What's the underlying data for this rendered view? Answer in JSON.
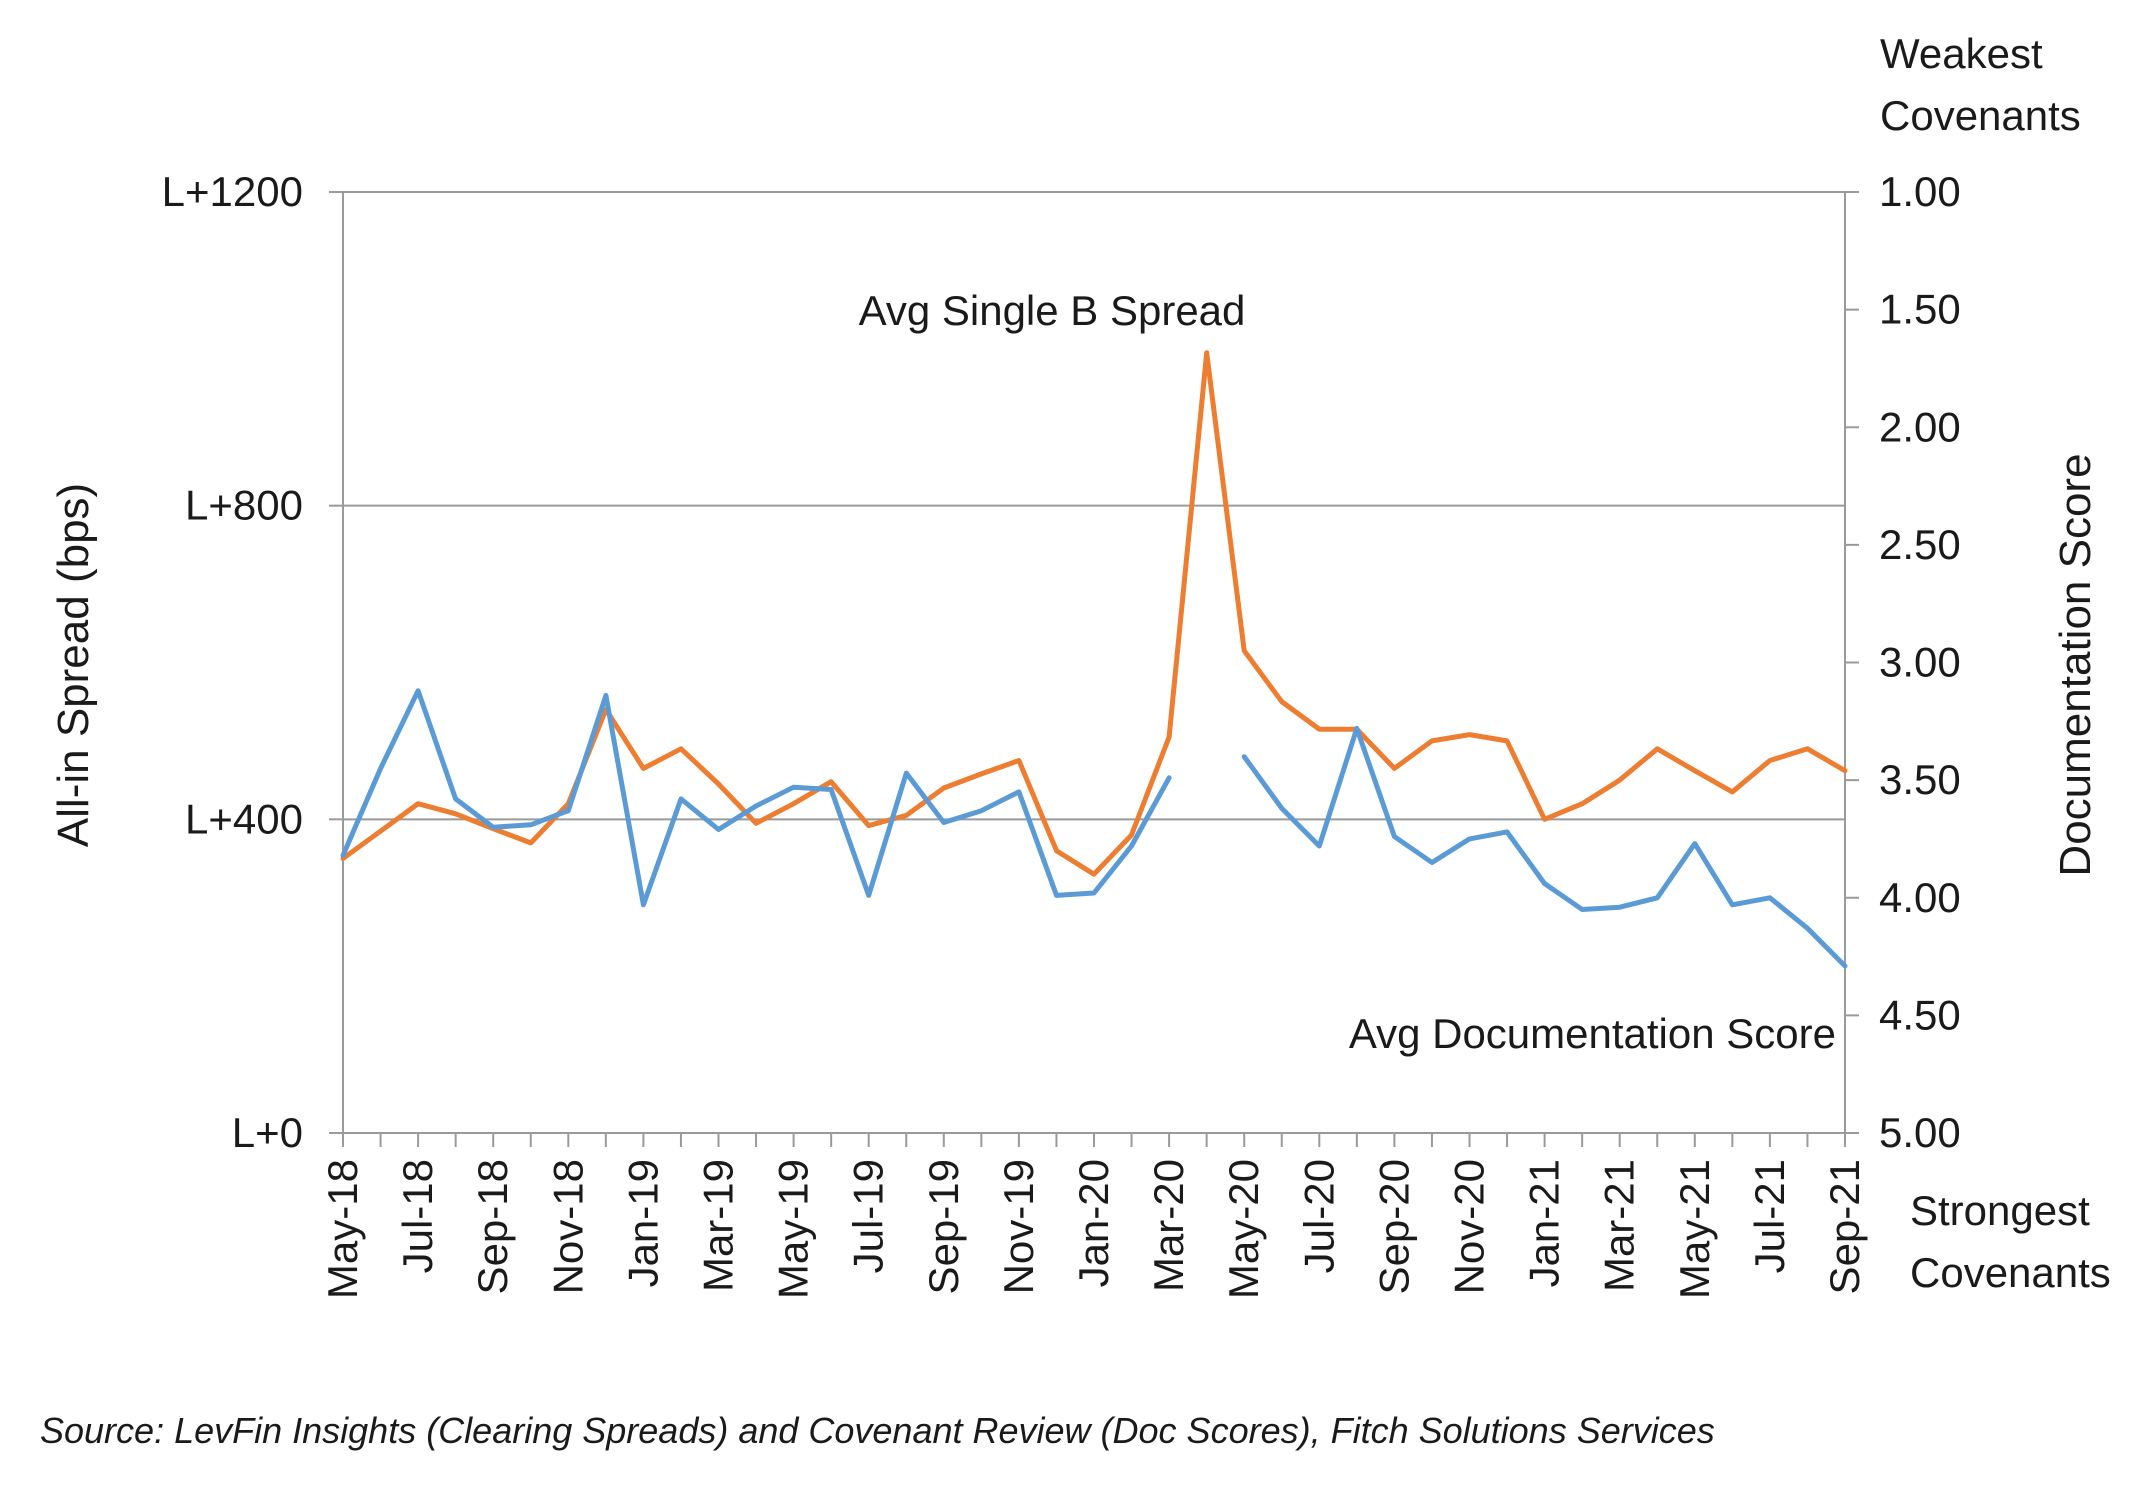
{
  "chart_data": {
    "type": "line",
    "x": [
      "May-18",
      "Jun-18",
      "Jul-18",
      "Aug-18",
      "Sep-18",
      "Oct-18",
      "Nov-18",
      "Dec-18",
      "Jan-19",
      "Feb-19",
      "Mar-19",
      "Apr-19",
      "May-19",
      "Jun-19",
      "Jul-19",
      "Aug-19",
      "Sep-19",
      "Oct-19",
      "Nov-19",
      "Dec-19",
      "Jan-20",
      "Feb-20",
      "Mar-20",
      "Apr-20",
      "May-20",
      "Jun-20",
      "Jul-20",
      "Aug-20",
      "Sep-20",
      "Oct-20",
      "Nov-20",
      "Dec-20",
      "Jan-21",
      "Feb-21",
      "Mar-21",
      "Apr-21",
      "May-21",
      "Jun-21",
      "Jul-21",
      "Aug-21",
      "Sep-21"
    ],
    "x_tick_labels": [
      "May-18",
      "Jul-18",
      "Sep-18",
      "Nov-18",
      "Jan-19",
      "Mar-19",
      "May-19",
      "Jul-19",
      "Sep-19",
      "Nov-19",
      "Jan-20",
      "Mar-20",
      "May-20",
      "Jul-20",
      "Sep-20",
      "Nov-20",
      "Jan-21",
      "Mar-21",
      "May-21",
      "Jul-21",
      "Sep-21"
    ],
    "left_axis": {
      "label": "All-in Spread (bps)",
      "range": [
        0,
        1200
      ],
      "ticks": [
        0,
        400,
        800,
        1200
      ],
      "tick_labels": [
        "L+0",
        "L+400",
        "L+800",
        "L+1200"
      ]
    },
    "right_axis": {
      "label": "Documentation Score",
      "range": [
        1.0,
        5.0
      ],
      "inverted": true,
      "ticks": [
        1.0,
        1.5,
        2.0,
        2.5,
        3.0,
        3.5,
        4.0,
        4.5,
        5.0
      ],
      "tick_labels": [
        "1.00",
        "1.50",
        "2.00",
        "2.50",
        "3.00",
        "3.50",
        "4.00",
        "4.50",
        "5.00"
      ],
      "top_label": [
        "Weakest",
        "Covenants"
      ],
      "bottom_label": [
        "Strongest",
        "Covenants"
      ]
    },
    "grid": "horizontal at left-axis ticks",
    "series": [
      {
        "name": "Avg Single B Spread",
        "axis": "left",
        "color": "#ED7D31",
        "values": [
          350,
          385,
          420,
          407,
          388,
          370,
          420,
          540,
          465,
          490,
          445,
          395,
          420,
          448,
          392,
          405,
          440,
          458,
          475,
          360,
          330,
          380,
          505,
          995,
          615,
          550,
          515,
          515,
          465,
          500,
          508,
          500,
          400,
          420,
          450,
          490,
          462,
          435,
          475,
          490,
          462
        ]
      },
      {
        "name": "Avg Documentation Score",
        "axis": "right",
        "color": "#5B9BD5",
        "values": [
          3.82,
          3.45,
          3.12,
          3.58,
          3.7,
          3.69,
          3.63,
          3.14,
          4.03,
          3.58,
          3.71,
          3.61,
          3.53,
          3.54,
          3.99,
          3.47,
          3.68,
          3.63,
          3.55,
          3.99,
          3.98,
          3.78,
          3.49,
          null,
          3.4,
          3.62,
          3.78,
          3.28,
          3.74,
          3.85,
          3.75,
          3.72,
          3.94,
          4.05,
          4.04,
          4.0,
          3.77,
          4.03,
          4.0,
          4.13,
          4.29
        ]
      }
    ],
    "annotations": [
      {
        "text": "Avg Single B Spread",
        "series": 0
      },
      {
        "text": "Avg Documentation Score",
        "series": 1
      }
    ],
    "source": "Source: LevFin Insights (Clearing Spreads) and Covenant Review (Doc Scores), Fitch Solutions Services"
  }
}
